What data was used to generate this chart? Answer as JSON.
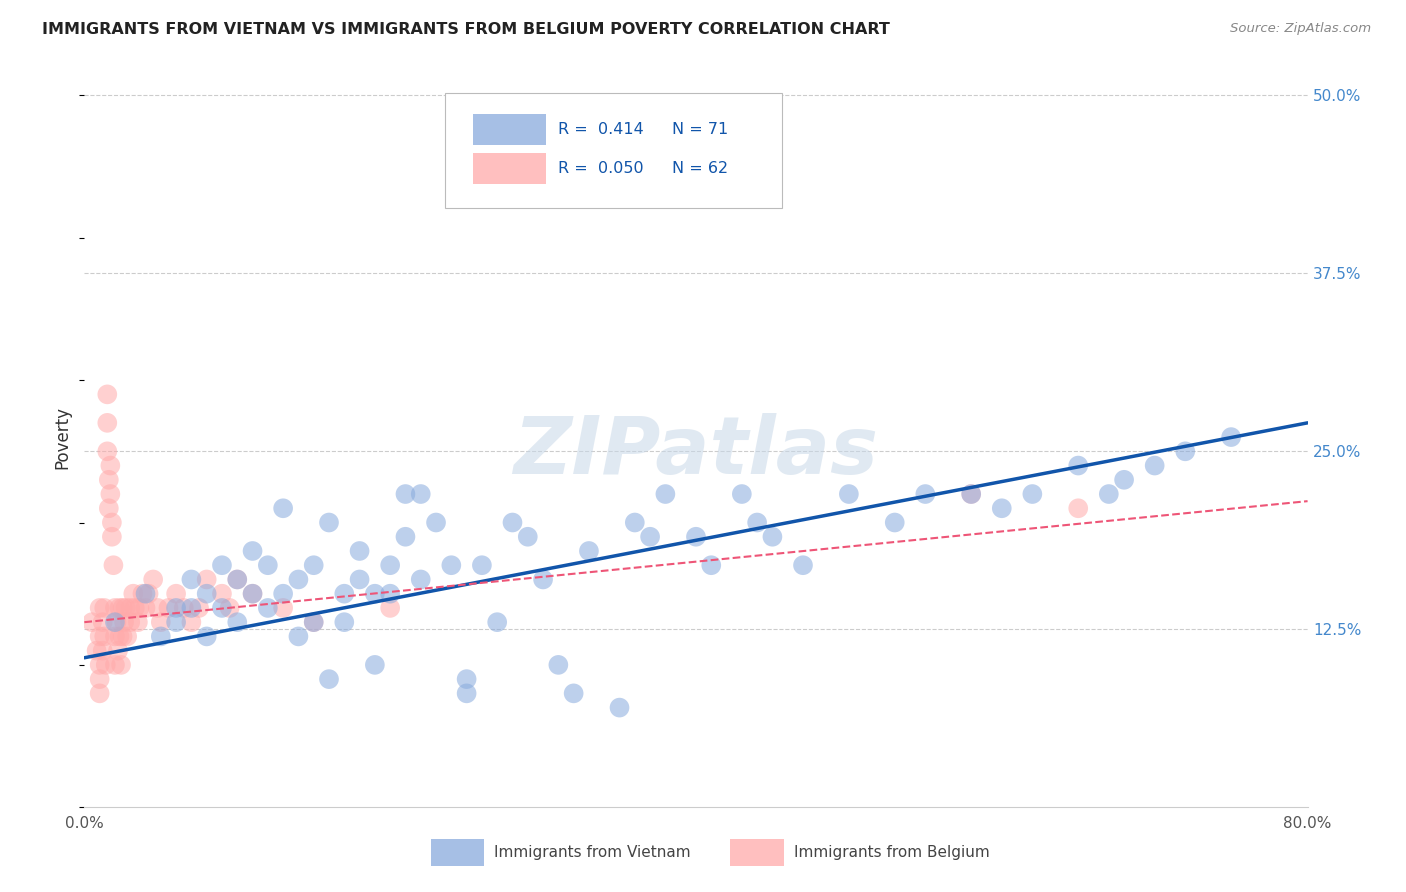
{
  "title": "IMMIGRANTS FROM VIETNAM VS IMMIGRANTS FROM BELGIUM POVERTY CORRELATION CHART",
  "source": "Source: ZipAtlas.com",
  "ylabel": "Poverty",
  "xlim": [
    0.0,
    0.8
  ],
  "ylim": [
    0.0,
    0.52
  ],
  "ytick_positions": [
    0.125,
    0.25,
    0.375,
    0.5
  ],
  "ytick_labels": [
    "12.5%",
    "25.0%",
    "37.5%",
    "50.0%"
  ],
  "background_color": "#ffffff",
  "grid_color": "#cccccc",
  "watermark": "ZIPatlas",
  "legend_R_vietnam": "0.414",
  "legend_N_vietnam": "71",
  "legend_R_belgium": "0.050",
  "legend_N_belgium": "62",
  "vietnam_color": "#88aadd",
  "belgium_color": "#ffaaaa",
  "vietnam_line_color": "#1155aa",
  "belgium_line_color": "#ee5577",
  "vietnam_x": [
    0.02,
    0.04,
    0.05,
    0.06,
    0.06,
    0.07,
    0.07,
    0.08,
    0.08,
    0.09,
    0.09,
    0.1,
    0.1,
    0.11,
    0.11,
    0.12,
    0.12,
    0.13,
    0.13,
    0.14,
    0.14,
    0.15,
    0.15,
    0.16,
    0.16,
    0.17,
    0.17,
    0.18,
    0.18,
    0.19,
    0.19,
    0.2,
    0.2,
    0.21,
    0.21,
    0.22,
    0.22,
    0.23,
    0.24,
    0.25,
    0.25,
    0.26,
    0.27,
    0.28,
    0.29,
    0.3,
    0.31,
    0.32,
    0.33,
    0.35,
    0.36,
    0.37,
    0.38,
    0.4,
    0.41,
    0.43,
    0.44,
    0.45,
    0.47,
    0.5,
    0.53,
    0.55,
    0.58,
    0.6,
    0.62,
    0.65,
    0.67,
    0.68,
    0.7,
    0.72,
    0.75
  ],
  "vietnam_y": [
    0.13,
    0.15,
    0.12,
    0.14,
    0.13,
    0.16,
    0.14,
    0.15,
    0.12,
    0.14,
    0.17,
    0.13,
    0.16,
    0.15,
    0.18,
    0.14,
    0.17,
    0.15,
    0.21,
    0.16,
    0.12,
    0.17,
    0.13,
    0.2,
    0.09,
    0.15,
    0.13,
    0.16,
    0.18,
    0.15,
    0.1,
    0.17,
    0.15,
    0.22,
    0.19,
    0.16,
    0.22,
    0.2,
    0.17,
    0.09,
    0.08,
    0.17,
    0.13,
    0.2,
    0.19,
    0.16,
    0.1,
    0.08,
    0.18,
    0.07,
    0.2,
    0.19,
    0.22,
    0.19,
    0.17,
    0.22,
    0.2,
    0.19,
    0.17,
    0.22,
    0.2,
    0.22,
    0.22,
    0.21,
    0.22,
    0.24,
    0.22,
    0.23,
    0.24,
    0.25,
    0.26
  ],
  "belgium_x": [
    0.005,
    0.008,
    0.01,
    0.01,
    0.01,
    0.01,
    0.01,
    0.012,
    0.012,
    0.013,
    0.013,
    0.014,
    0.015,
    0.015,
    0.015,
    0.016,
    0.016,
    0.017,
    0.017,
    0.018,
    0.018,
    0.019,
    0.02,
    0.02,
    0.02,
    0.021,
    0.022,
    0.023,
    0.023,
    0.024,
    0.025,
    0.025,
    0.026,
    0.027,
    0.028,
    0.03,
    0.03,
    0.032,
    0.033,
    0.035,
    0.036,
    0.038,
    0.04,
    0.042,
    0.045,
    0.048,
    0.05,
    0.055,
    0.06,
    0.065,
    0.07,
    0.075,
    0.08,
    0.09,
    0.095,
    0.1,
    0.11,
    0.13,
    0.15,
    0.2,
    0.58,
    0.65
  ],
  "belgium_y": [
    0.13,
    0.11,
    0.14,
    0.12,
    0.1,
    0.09,
    0.08,
    0.13,
    0.11,
    0.14,
    0.12,
    0.1,
    0.29,
    0.27,
    0.25,
    0.23,
    0.21,
    0.24,
    0.22,
    0.2,
    0.19,
    0.17,
    0.14,
    0.12,
    0.1,
    0.13,
    0.11,
    0.14,
    0.12,
    0.1,
    0.14,
    0.12,
    0.13,
    0.14,
    0.12,
    0.14,
    0.13,
    0.15,
    0.14,
    0.13,
    0.14,
    0.15,
    0.14,
    0.15,
    0.16,
    0.14,
    0.13,
    0.14,
    0.15,
    0.14,
    0.13,
    0.14,
    0.16,
    0.15,
    0.14,
    0.16,
    0.15,
    0.14,
    0.13,
    0.14,
    0.22,
    0.21
  ],
  "vietnam_line_x": [
    0.0,
    0.8
  ],
  "vietnam_line_y": [
    0.105,
    0.27
  ],
  "belgium_line_x": [
    0.0,
    0.8
  ],
  "belgium_line_y": [
    0.13,
    0.215
  ]
}
